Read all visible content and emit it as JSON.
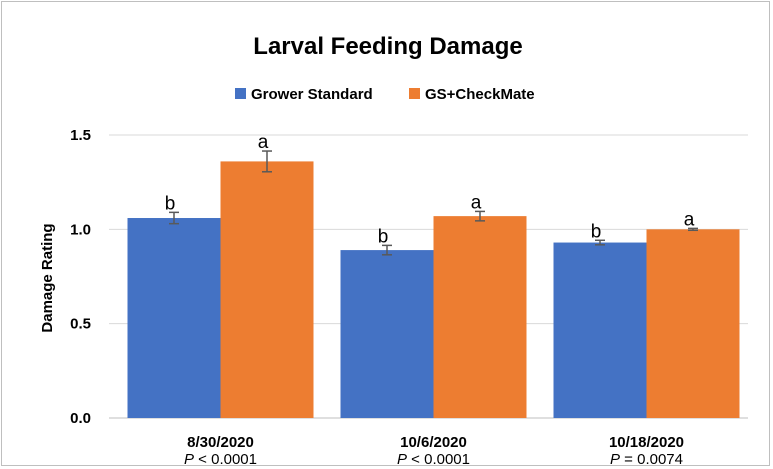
{
  "chart_data": {
    "type": "bar",
    "title": "Larval Feeding Damage",
    "ylabel": "Damage Rating",
    "ylim": [
      0,
      1.5
    ],
    "yticks": [
      "0.0",
      "0.5",
      "1.0",
      "1.5"
    ],
    "ytick_values": [
      0,
      0.5,
      1.0,
      1.5
    ],
    "grid": true,
    "legend_position": "top",
    "categories": [
      "8/30/2020",
      "10/6/2020",
      "10/18/2020"
    ],
    "p_values": [
      {
        "label": "P",
        "text": " < 0.0001"
      },
      {
        "label": "P",
        "text": " < 0.0001"
      },
      {
        "label": "P",
        "text": " = 0.0074"
      }
    ],
    "series": [
      {
        "name": "Grower Standard",
        "color": "#4472C4",
        "values": [
          1.06,
          0.89,
          0.93
        ],
        "errors": [
          0.03,
          0.025,
          0.012
        ],
        "letters": [
          "b",
          "b",
          "b"
        ]
      },
      {
        "name": "GS+CheckMate",
        "color": "#ED7D31",
        "values": [
          1.36,
          1.07,
          1.0
        ],
        "errors": [
          0.055,
          0.025,
          0.005
        ],
        "letters": [
          "a",
          "a",
          "a"
        ]
      }
    ]
  }
}
